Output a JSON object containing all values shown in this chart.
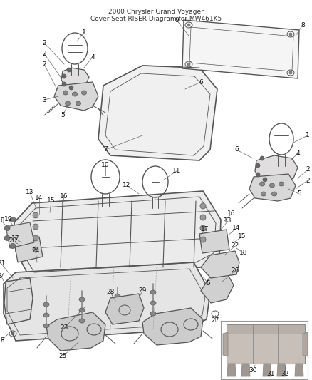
{
  "title": "2000 Chrysler Grand Voyager\nCover-Seat RISER Diagram for MW461K5",
  "bg_color": "#ffffff",
  "fig_width": 4.39,
  "fig_height": 5.33,
  "dpi": 100,
  "lc": "#555555",
  "lw": 0.7,
  "label_fontsize": 6.5,
  "label_color": "#111111",
  "leader_color": "#666666",
  "leader_lw": 0.5
}
